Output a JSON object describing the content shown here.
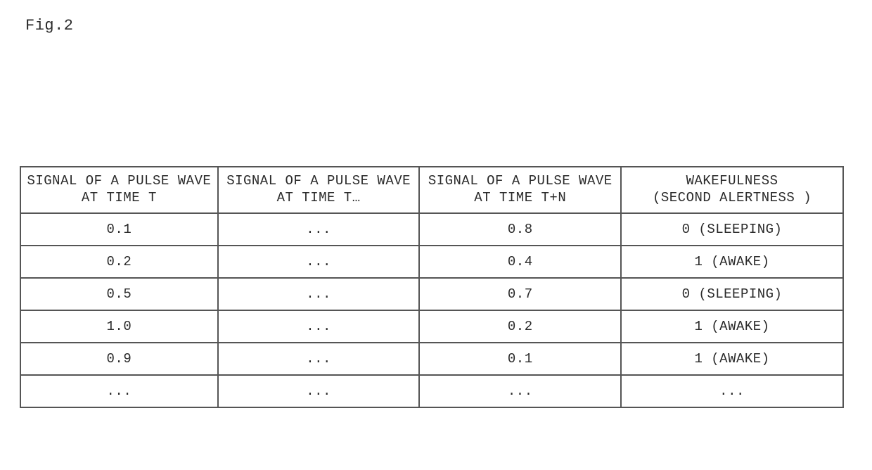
{
  "figure_label": "Fig.2",
  "table": {
    "type": "table",
    "border_color": "#555555",
    "background_color": "#ffffff",
    "text_color": "#2a2a2a",
    "font_family": "Courier New",
    "header_fontsize": 19,
    "cell_fontsize": 19,
    "header_row_height": 64,
    "data_row_height": 44,
    "column_widths_pct": [
      24,
      24.5,
      24.5,
      27
    ],
    "columns": [
      "SIGNAL OF A PULSE WAVE\nAT TIME T",
      "SIGNAL OF A PULSE WAVE\nAT TIME T…",
      "SIGNAL OF A PULSE WAVE\nAT TIME T+N",
      "WAKEFULNESS\n(SECOND ALERTNESS )"
    ],
    "rows": [
      [
        "0.1",
        "...",
        "0.8",
        "0 (SLEEPING)"
      ],
      [
        "0.2",
        "...",
        "0.4",
        "1 (AWAKE)"
      ],
      [
        "0.5",
        "...",
        "0.7",
        "0 (SLEEPING)"
      ],
      [
        "1.0",
        "...",
        "0.2",
        "1 (AWAKE)"
      ],
      [
        "0.9",
        "...",
        "0.1",
        "1 (AWAKE)"
      ],
      [
        "...",
        "...",
        "...",
        "..."
      ]
    ]
  }
}
